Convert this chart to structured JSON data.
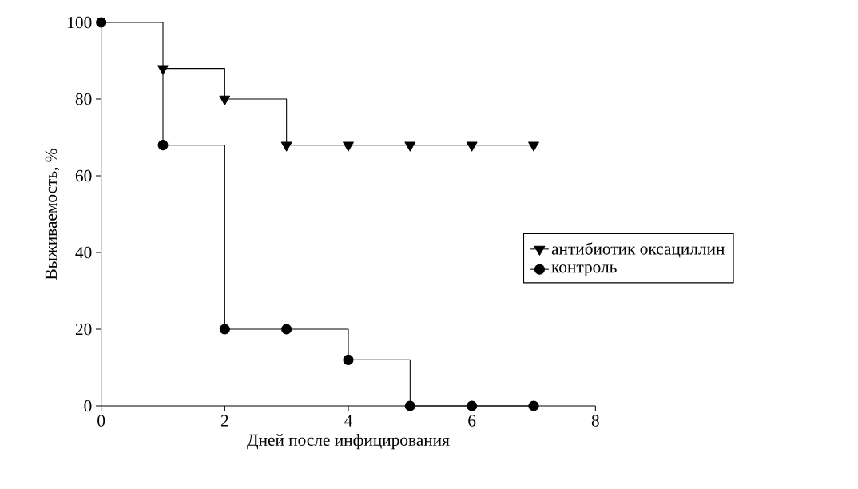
{
  "chart_data": {
    "type": "step",
    "xlabel": "Дней после инфицирования",
    "ylabel": "Выживаемость, %",
    "x": [
      0,
      1,
      2,
      3,
      4,
      5,
      6,
      7
    ],
    "xlim": [
      0,
      8
    ],
    "ylim": [
      0,
      100
    ],
    "xticks": [
      0,
      2,
      4,
      6,
      8
    ],
    "yticks": [
      0,
      20,
      40,
      60,
      80,
      100
    ],
    "legend": "right",
    "series": [
      {
        "name": "антибиотик оксациллин",
        "color": "#000000",
        "marker": "triangle",
        "values": [
          null,
          88,
          80,
          68,
          68,
          68,
          68,
          68
        ]
      },
      {
        "name": "контроль",
        "color": "#000000",
        "marker": "circle",
        "values": [
          100,
          68,
          20,
          20,
          12,
          0,
          0,
          0
        ]
      }
    ]
  }
}
